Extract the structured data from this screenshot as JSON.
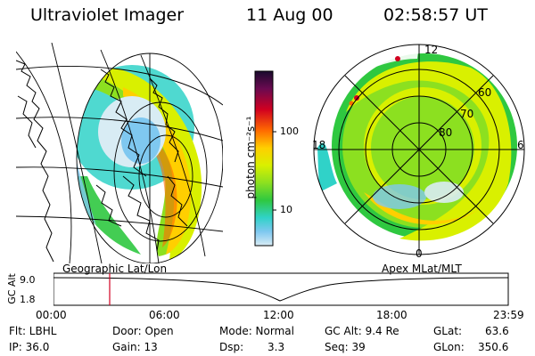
{
  "header": {
    "title": "Ultraviolet Imager",
    "date": "11 Aug 00",
    "time": "02:58:57 UT"
  },
  "colorbar": {
    "unit_label": "photon cm⁻²s⁻¹",
    "ticks": [
      "100",
      "10"
    ],
    "colors": [
      "#1a0a2e",
      "#6a0a50",
      "#d10020",
      "#ff6a00",
      "#ffcf00",
      "#d9f000",
      "#8ce020",
      "#2fc840",
      "#30d2c8",
      "#7fc8f0",
      "#d8ecf4"
    ]
  },
  "left_panel": {
    "caption": "Geographic Lat/Lon"
  },
  "right_panel": {
    "caption": "Apex  MLat/MLT",
    "lat_labels": [
      "60",
      "70",
      "80"
    ],
    "mlt_labels": [
      "12",
      "18",
      "6",
      "0"
    ]
  },
  "timeline": {
    "ylabel": "GC Alt",
    "y_ticks": [
      "9.0",
      "1.8"
    ],
    "x_ticks": [
      "00:00",
      "06:00",
      "12:00",
      "18:00",
      "23:59"
    ],
    "marker_time": "02:58:57"
  },
  "info": {
    "col1": [
      "Flt: LBHL",
      "IP: 36.0"
    ],
    "col2": [
      "Door: Open",
      "Gain: 13"
    ],
    "col3": [
      "Mode: Normal",
      "Dsp:"
    ],
    "col3_value": "3.3",
    "col4": [
      "GC Alt: 9.4 Re",
      "Seq: 39"
    ],
    "col5": [
      "GLat:",
      "GLon:"
    ],
    "col5_values": [
      "63.6",
      "350.6"
    ]
  }
}
